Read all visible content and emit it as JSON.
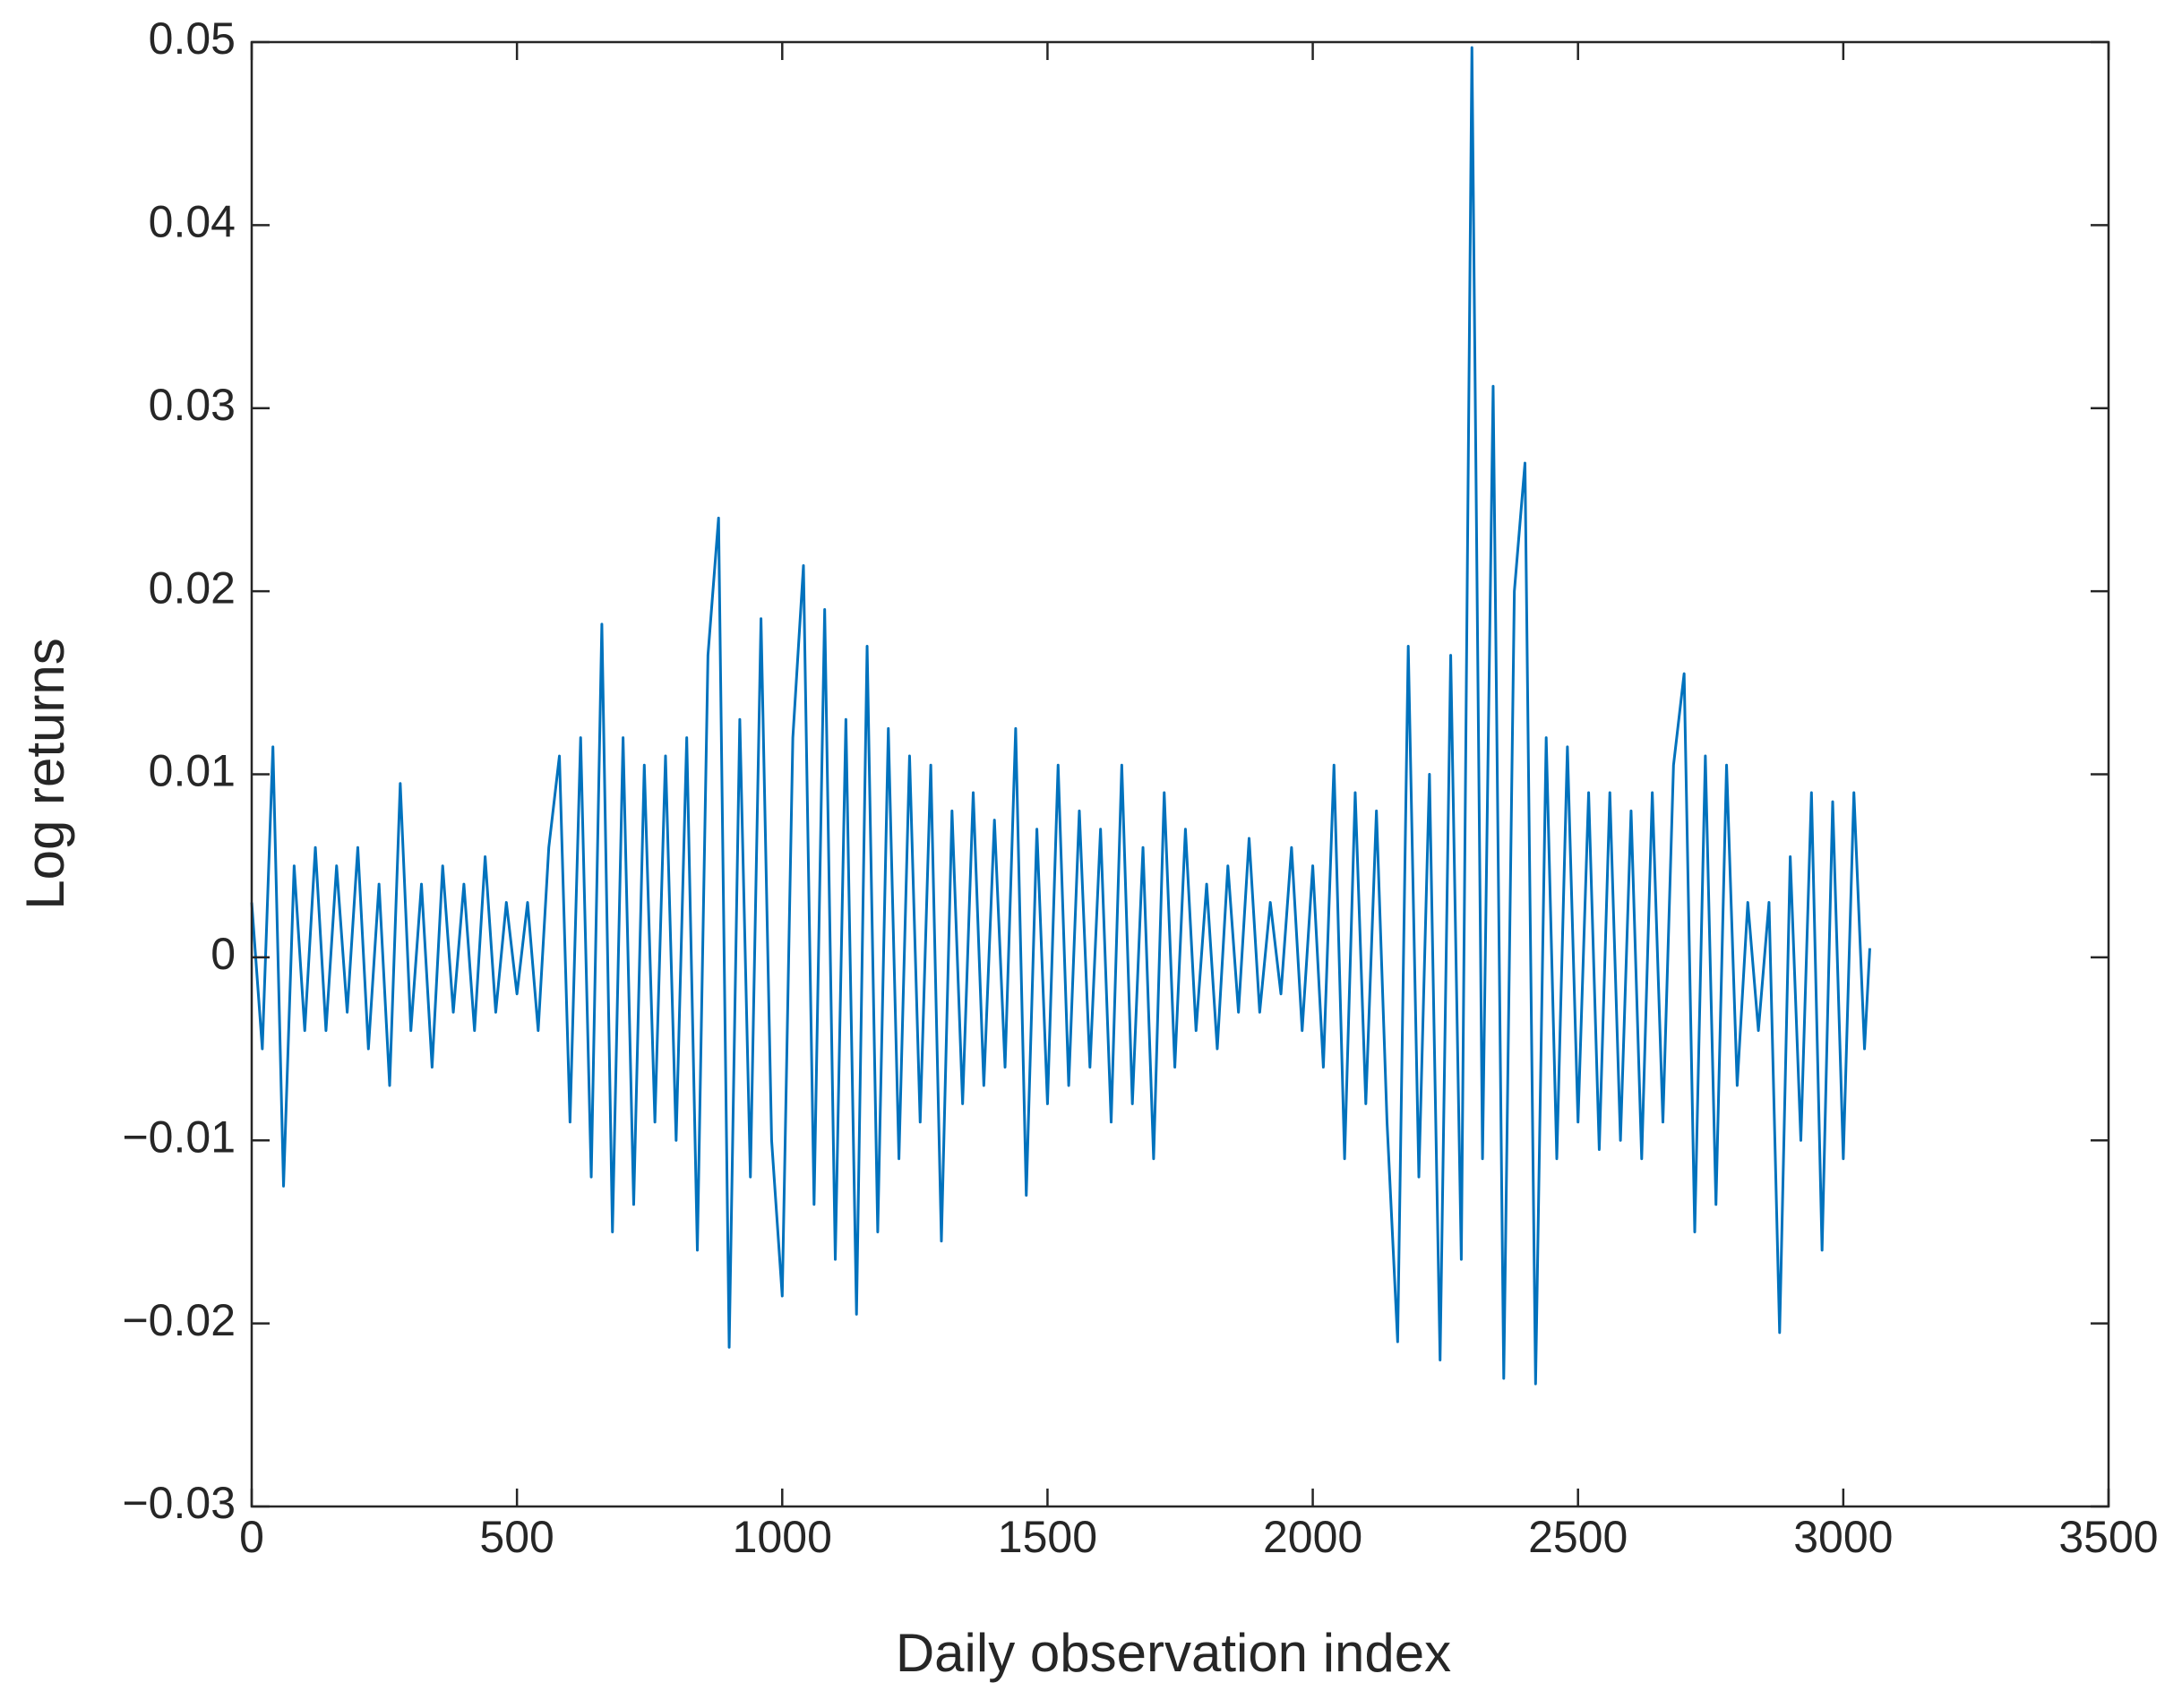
{
  "chart_data": {
    "type": "line",
    "x_label": "Daily observation index",
    "y_label": "Log returns",
    "xlim": [
      0,
      3500
    ],
    "xticks": [
      0,
      500,
      1000,
      1500,
      2000,
      2500,
      3000,
      3500
    ],
    "ylim": [
      -0.03,
      0.05
    ],
    "yticks": [
      {
        "value": -0.03,
        "label": "−0.03"
      },
      {
        "value": -0.02,
        "label": "−0.02"
      },
      {
        "value": -0.01,
        "label": "−0.01"
      },
      0,
      0.01,
      0.02,
      0.03,
      0.04,
      0.05
    ],
    "grid": false,
    "series": [
      {
        "color": "#0072bd",
        "x": [
          0,
          20,
          40,
          60,
          80,
          100,
          120,
          140,
          160,
          180,
          200,
          220,
          240,
          260,
          280,
          300,
          320,
          340,
          360,
          380,
          400,
          420,
          440,
          460,
          480,
          500,
          520,
          540,
          560,
          580,
          600,
          620,
          640,
          660,
          680,
          700,
          720,
          740,
          760,
          780,
          800,
          820,
          840,
          860,
          880,
          900,
          920,
          940,
          960,
          980,
          1000,
          1020,
          1040,
          1060,
          1080,
          1100,
          1120,
          1140,
          1160,
          1180,
          1200,
          1220,
          1240,
          1260,
          1280,
          1300,
          1320,
          1340,
          1360,
          1380,
          1400,
          1420,
          1440,
          1460,
          1480,
          1500,
          1520,
          1540,
          1560,
          1580,
          1600,
          1620,
          1640,
          1660,
          1680,
          1700,
          1720,
          1740,
          1760,
          1780,
          1800,
          1820,
          1840,
          1860,
          1880,
          1900,
          1920,
          1940,
          1960,
          1980,
          2000,
          2020,
          2040,
          2060,
          2080,
          2100,
          2120,
          2140,
          2160,
          2180,
          2200,
          2220,
          2240,
          2260,
          2280,
          2300,
          2320,
          2340,
          2360,
          2380,
          2400,
          2420,
          2440,
          2460,
          2480,
          2500,
          2520,
          2540,
          2560,
          2580,
          2600,
          2620,
          2640,
          2660,
          2680,
          2700,
          2720,
          2740,
          2760,
          2780,
          2800,
          2820,
          2840,
          2860,
          2880,
          2900,
          2920,
          2940,
          2960,
          2980,
          3000,
          3020,
          3040,
          3050
        ],
        "values": [
          0.003,
          -0.005,
          0.0115,
          -0.0125,
          0.005,
          -0.004,
          0.006,
          -0.004,
          0.005,
          -0.003,
          0.006,
          -0.005,
          0.004,
          -0.007,
          0.0095,
          -0.004,
          0.004,
          -0.006,
          0.005,
          -0.003,
          0.004,
          -0.004,
          0.0055,
          -0.003,
          0.003,
          -0.002,
          0.003,
          -0.004,
          0.006,
          0.011,
          -0.009,
          0.012,
          -0.012,
          0.0182,
          -0.015,
          0.012,
          -0.0135,
          0.0105,
          -0.009,
          0.011,
          -0.01,
          0.012,
          -0.016,
          0.0165,
          0.024,
          -0.0213,
          0.013,
          -0.012,
          0.0185,
          -0.01,
          -0.0185,
          0.012,
          0.0214,
          -0.0135,
          0.019,
          -0.0165,
          0.013,
          -0.0195,
          0.017,
          -0.015,
          0.0125,
          -0.011,
          0.011,
          -0.009,
          0.0105,
          -0.0155,
          0.008,
          -0.008,
          0.009,
          -0.007,
          0.0075,
          -0.006,
          0.0125,
          -0.013,
          0.007,
          -0.008,
          0.0105,
          -0.007,
          0.008,
          -0.006,
          0.007,
          -0.009,
          0.0105,
          -0.008,
          0.006,
          -0.011,
          0.009,
          -0.006,
          0.007,
          -0.004,
          0.004,
          -0.005,
          0.005,
          -0.003,
          0.0065,
          -0.003,
          0.003,
          -0.002,
          0.006,
          -0.004,
          0.005,
          -0.006,
          0.0105,
          -0.011,
          0.009,
          -0.008,
          0.008,
          -0.009,
          -0.021,
          0.017,
          -0.012,
          0.01,
          -0.022,
          0.0165,
          -0.0165,
          0.0497,
          -0.011,
          0.0312,
          -0.023,
          0.02,
          0.027,
          -0.0233,
          0.012,
          -0.011,
          0.0115,
          -0.009,
          0.009,
          -0.0105,
          0.009,
          -0.01,
          0.008,
          -0.011,
          0.009,
          -0.009,
          0.0105,
          0.0155,
          -0.015,
          0.011,
          -0.0135,
          0.0105,
          -0.007,
          0.003,
          -0.004,
          0.003,
          -0.0205,
          0.0055,
          -0.01,
          0.009,
          -0.016,
          0.0085,
          -0.011,
          0.009,
          -0.005,
          0.0005
        ]
      }
    ]
  }
}
